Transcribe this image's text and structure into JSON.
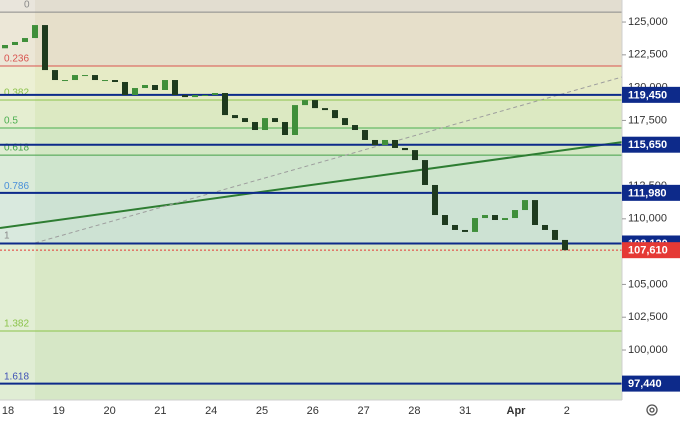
{
  "chart_data": {
    "type": "candlestick",
    "categories": [
      "18",
      "19",
      "20",
      "21",
      "24",
      "25",
      "26",
      "27",
      "28",
      "31",
      "Apr",
      "2"
    ],
    "open": [
      123000,
      123250,
      123480,
      123780,
      124770,
      121340,
      120580,
      120580,
      120960,
      120960,
      120580,
      120580,
      120430,
      119440,
      119970,
      120200,
      119820,
      120580,
      119440,
      119280,
      119440,
      119440,
      119590,
      117910,
      117680,
      117380,
      116770,
      117680,
      117380,
      116390,
      118670,
      119050,
      118440,
      118290,
      117680,
      117150,
      116770,
      116010,
      115620,
      116010,
      115400,
      115240,
      114480,
      112580,
      110290,
      109530,
      109150,
      109000,
      110060,
      110290,
      109910,
      110060,
      110670,
      111430,
      109530,
      109150,
      108390
    ],
    "close": [
      123250,
      123480,
      123780,
      124770,
      121340,
      120580,
      120580,
      120960,
      120960,
      120580,
      120580,
      120430,
      119440,
      119970,
      120200,
      119820,
      120580,
      119440,
      119280,
      119440,
      119440,
      119590,
      117910,
      117680,
      117380,
      116770,
      117680,
      117380,
      116390,
      118670,
      119050,
      118440,
      118290,
      117680,
      117150,
      116770,
      116010,
      115620,
      116010,
      115400,
      115240,
      114480,
      112580,
      110290,
      109530,
      109150,
      109000,
      110060,
      110290,
      109910,
      110060,
      110670,
      111430,
      109530,
      109150,
      108390,
      107610
    ],
    "up_color": "#3f8f3a",
    "down_color": "#1e3a1e",
    "ylim": [
      96190,
      126680
    ],
    "yticks": [
      {
        "value": 125000,
        "label": "125,000"
      },
      {
        "value": 122500,
        "label": "122,500"
      },
      {
        "value": 120000,
        "label": "120,000"
      },
      {
        "value": 117500,
        "label": "117,500"
      },
      {
        "value": 112500,
        "label": "112,500"
      },
      {
        "value": 110000,
        "label": "110,000"
      },
      {
        "value": 105000,
        "label": "105,000"
      },
      {
        "value": 102500,
        "label": "102,500"
      },
      {
        "value": 100000,
        "label": "100,000"
      }
    ],
    "fib_levels": [
      {
        "label": "0",
        "price": 125760,
        "color": "#8a8a8a",
        "zone": "#e6dfca"
      },
      {
        "label": "0.236",
        "price": 121650,
        "color": "#d9534f",
        "zone": "#e6ebc6"
      },
      {
        "label": "0.382",
        "price": 119060,
        "color": "#8bc34a",
        "zone": "#dce9c2"
      },
      {
        "label": "0.5",
        "price": 116920,
        "color": "#4caf50",
        "zone": "#d4e7c4"
      },
      {
        "label": "0.618",
        "price": 114860,
        "color": "#43a047",
        "zone": "#cfe5cd"
      },
      {
        "label": "0.786",
        "price": 111960,
        "color": "#4a90d9",
        "zone": "#cde2d3"
      },
      {
        "label": "1",
        "price": 108150,
        "color": "#8a8a8a",
        "zone": "#d9e8c6"
      },
      {
        "label": "1.382",
        "price": 101450,
        "color": "#8bc34a",
        "zone": "#d6e7c6"
      },
      {
        "label": "1.618",
        "price": 97410,
        "color": "#3f51b5",
        "zone": "#d6e7c6"
      }
    ],
    "price_lines": [
      {
        "value": 119450,
        "label": "119,450",
        "color": "#0d2a8a"
      },
      {
        "value": 115650,
        "label": "115,650",
        "color": "#0d2a8a"
      },
      {
        "value": 111980,
        "label": "111,980",
        "color": "#0d2a8a"
      },
      {
        "value": 108120,
        "label": "108,120",
        "color": "#0d2a8a"
      },
      {
        "value": 107610,
        "label": "107,610",
        "color": "#e53935"
      },
      {
        "value": 97440,
        "label": "97,440",
        "color": "#0d2a8a"
      }
    ],
    "trendlines": [
      {
        "start": 109300,
        "end": 115850,
        "color": "#2e7d32",
        "dashed": false
      },
      {
        "start": 108160,
        "end": 120810,
        "color": "#9e9e9e",
        "dashed": true
      }
    ]
  }
}
